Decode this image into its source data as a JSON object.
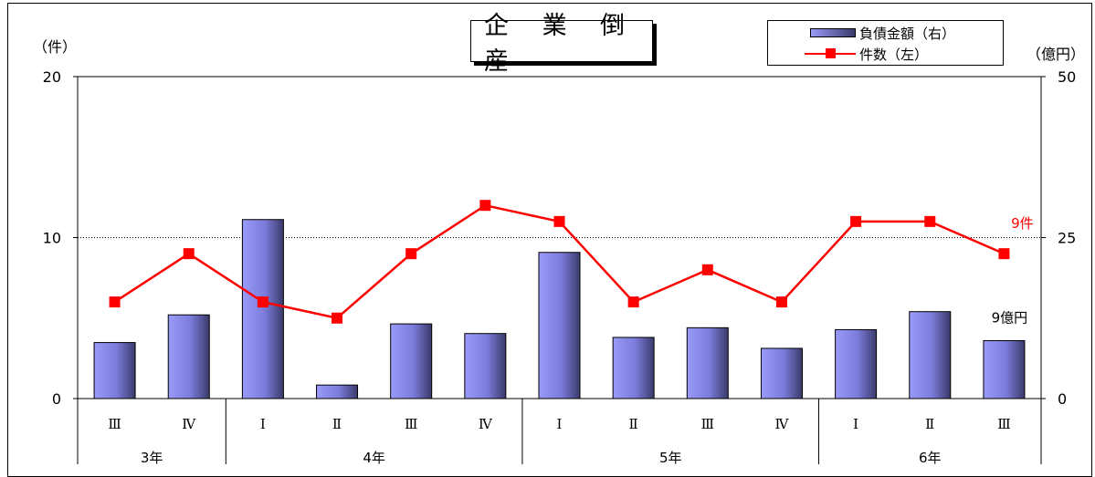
{
  "title": "企 業 倒 産",
  "left_unit": "（件）",
  "right_unit": "（億円）",
  "legend": {
    "bar_label": "負債金額（右）",
    "line_label": "件数（左）"
  },
  "annotations": {
    "line_last": "9件",
    "bar_last": "9億円"
  },
  "colors": {
    "line": "#ff0000",
    "bar_light": "#9a9af8",
    "bar_dark": "#3a3a6a"
  },
  "chart_data": {
    "type": "bar",
    "categories": [
      "Ⅲ",
      "Ⅳ",
      "Ⅰ",
      "Ⅱ",
      "Ⅲ",
      "Ⅳ",
      "Ⅰ",
      "Ⅱ",
      "Ⅲ",
      "Ⅳ",
      "Ⅰ",
      "Ⅱ",
      "Ⅲ"
    ],
    "year_groups": [
      {
        "label": "3年",
        "count": 2
      },
      {
        "label": "4年",
        "count": 4
      },
      {
        "label": "5年",
        "count": 4
      },
      {
        "label": "6年",
        "count": 3
      }
    ],
    "series": [
      {
        "name": "負債金額（右）",
        "type": "bar",
        "axis": "right",
        "values": [
          8.7,
          13,
          27.8,
          2.1,
          11.6,
          10.1,
          22.7,
          9.5,
          11,
          7.8,
          10.7,
          13.5,
          9
        ]
      },
      {
        "name": "件数（左）",
        "type": "line",
        "axis": "left",
        "values": [
          6,
          9,
          6,
          5,
          9,
          12,
          11,
          6,
          8,
          6,
          11,
          11,
          9
        ]
      }
    ],
    "y_left": {
      "ticks": [
        "0",
        "10",
        "20"
      ],
      "lim": [
        0,
        20
      ]
    },
    "y_right": {
      "ticks": [
        "0",
        "25",
        "50"
      ],
      "lim": [
        0,
        50
      ]
    },
    "grid": "dotted at 10"
  }
}
